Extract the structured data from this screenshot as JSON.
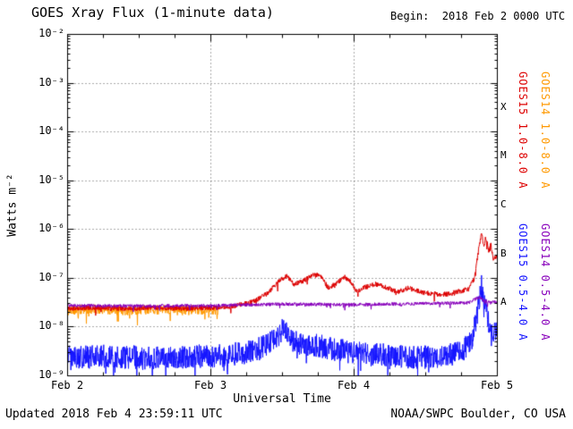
{
  "chart_data": {
    "type": "line",
    "title": "GOES Xray Flux (1-minute data)",
    "begin_label": "Begin:  2018 Feb 2 0000 UTC",
    "xlabel": "Universal Time",
    "ylabel": "Watts m⁻²",
    "background_color": "#ffffff",
    "grid": "dotted",
    "x_axis": {
      "range_days": [
        0,
        3
      ],
      "minor_tick_days": 0.25,
      "ticks": [
        {
          "t": 0,
          "label": "Feb 2"
        },
        {
          "t": 1,
          "label": "Feb 3"
        },
        {
          "t": 2,
          "label": "Feb 4"
        },
        {
          "t": 3,
          "label": "Feb 5"
        }
      ]
    },
    "y_axis": {
      "scale": "log",
      "range": [
        1e-09,
        0.01
      ],
      "ticks": [
        {
          "exp": -2,
          "label": "10⁻²"
        },
        {
          "exp": -3,
          "label": "10⁻³"
        },
        {
          "exp": -4,
          "label": "10⁻⁴"
        },
        {
          "exp": -5,
          "label": "10⁻⁵"
        },
        {
          "exp": -6,
          "label": "10⁻⁶"
        },
        {
          "exp": -7,
          "label": "10⁻⁷"
        },
        {
          "exp": -8,
          "label": "10⁻⁸"
        },
        {
          "exp": -9,
          "label": "10⁻⁹"
        }
      ]
    },
    "flare_classes": [
      {
        "label": "X",
        "log_mid": -3.5
      },
      {
        "label": "M",
        "log_mid": -4.5
      },
      {
        "label": "C",
        "log_mid": -5.5
      },
      {
        "label": "B",
        "log_mid": -6.5
      },
      {
        "label": "A",
        "log_mid": -7.5
      }
    ],
    "series": [
      {
        "name": "GOES14 1.0-8.0 A",
        "color": "#ff9900",
        "noise_dex": 0.1,
        "spike_prob": 0.05,
        "spike_dex": 0.3,
        "t_range": [
          0,
          1.05
        ],
        "points": [
          [
            0,
            -7.66
          ],
          [
            0.2,
            -7.63
          ],
          [
            0.4,
            -7.66
          ],
          [
            0.6,
            -7.64
          ],
          [
            0.8,
            -7.66
          ],
          [
            0.95,
            -7.64
          ],
          [
            1.05,
            -7.65
          ]
        ]
      },
      {
        "name": "GOES15 1.0-8.0 A",
        "color": "#dd0000",
        "noise_dex": 0.05,
        "spike_prob": 0.02,
        "spike_dex": 0.15,
        "t_range": [
          0,
          3
        ],
        "points": [
          [
            0,
            -7.62
          ],
          [
            0.2,
            -7.6
          ],
          [
            0.4,
            -7.63
          ],
          [
            0.6,
            -7.6
          ],
          [
            0.8,
            -7.62
          ],
          [
            1,
            -7.6
          ],
          [
            1.15,
            -7.58
          ],
          [
            1.3,
            -7.48
          ],
          [
            1.4,
            -7.3
          ],
          [
            1.48,
            -7.05
          ],
          [
            1.53,
            -6.95
          ],
          [
            1.58,
            -7.12
          ],
          [
            1.65,
            -7.05
          ],
          [
            1.7,
            -6.95
          ],
          [
            1.76,
            -6.93
          ],
          [
            1.82,
            -7.2
          ],
          [
            1.88,
            -7.1
          ],
          [
            1.93,
            -6.97
          ],
          [
            1.97,
            -7.05
          ],
          [
            2.02,
            -7.28
          ],
          [
            2.08,
            -7.18
          ],
          [
            2.15,
            -7.12
          ],
          [
            2.22,
            -7.18
          ],
          [
            2.3,
            -7.28
          ],
          [
            2.38,
            -7.2
          ],
          [
            2.46,
            -7.28
          ],
          [
            2.55,
            -7.32
          ],
          [
            2.65,
            -7.33
          ],
          [
            2.72,
            -7.28
          ],
          [
            2.8,
            -7.22
          ],
          [
            2.84,
            -7.0
          ],
          [
            2.87,
            -6.4
          ],
          [
            2.89,
            -6.05
          ],
          [
            2.905,
            -6.35
          ],
          [
            2.92,
            -6.15
          ],
          [
            2.94,
            -6.45
          ],
          [
            2.955,
            -6.3
          ],
          [
            2.97,
            -6.6
          ],
          [
            3,
            -6.55
          ]
        ]
      },
      {
        "name": "GOES15 0.5-4.0 A",
        "color": "#1414ff",
        "noise_dex": 0.24,
        "spike_prob": 0.05,
        "spike_dex": 0.35,
        "t_range": [
          0,
          3
        ],
        "points": [
          [
            0,
            -8.62
          ],
          [
            0.3,
            -8.6
          ],
          [
            0.6,
            -8.63
          ],
          [
            0.9,
            -8.6
          ],
          [
            1.1,
            -8.58
          ],
          [
            1.3,
            -8.5
          ],
          [
            1.42,
            -8.3
          ],
          [
            1.5,
            -8.05
          ],
          [
            1.56,
            -8.25
          ],
          [
            1.65,
            -8.4
          ],
          [
            1.75,
            -8.38
          ],
          [
            1.85,
            -8.45
          ],
          [
            1.95,
            -8.5
          ],
          [
            2.1,
            -8.55
          ],
          [
            2.3,
            -8.6
          ],
          [
            2.5,
            -8.62
          ],
          [
            2.65,
            -8.58
          ],
          [
            2.75,
            -8.5
          ],
          [
            2.82,
            -8.3
          ],
          [
            2.86,
            -7.7
          ],
          [
            2.89,
            -7.15
          ],
          [
            2.905,
            -7.6
          ],
          [
            2.92,
            -7.45
          ],
          [
            2.94,
            -7.9
          ],
          [
            2.96,
            -8.1
          ],
          [
            3,
            -8.05
          ]
        ]
      },
      {
        "name": "GOES14 0.5-4.0 A",
        "color": "#8800bb",
        "noise_dex": 0.035,
        "spike_prob": 0.02,
        "spike_dex": 0.1,
        "t_range": [
          0,
          3
        ],
        "points": [
          [
            0,
            -7.56
          ],
          [
            0.5,
            -7.57
          ],
          [
            1,
            -7.56
          ],
          [
            1.5,
            -7.53
          ],
          [
            2,
            -7.54
          ],
          [
            2.5,
            -7.52
          ],
          [
            2.8,
            -7.5
          ],
          [
            2.88,
            -7.38
          ],
          [
            2.9,
            -7.45
          ],
          [
            2.95,
            -7.5
          ],
          [
            3,
            -7.48
          ]
        ]
      }
    ],
    "footer": {
      "updated": "Updated 2018 Feb 4 23:59:11 UTC",
      "credit": "NOAA/SWPC Boulder, CO USA"
    }
  }
}
